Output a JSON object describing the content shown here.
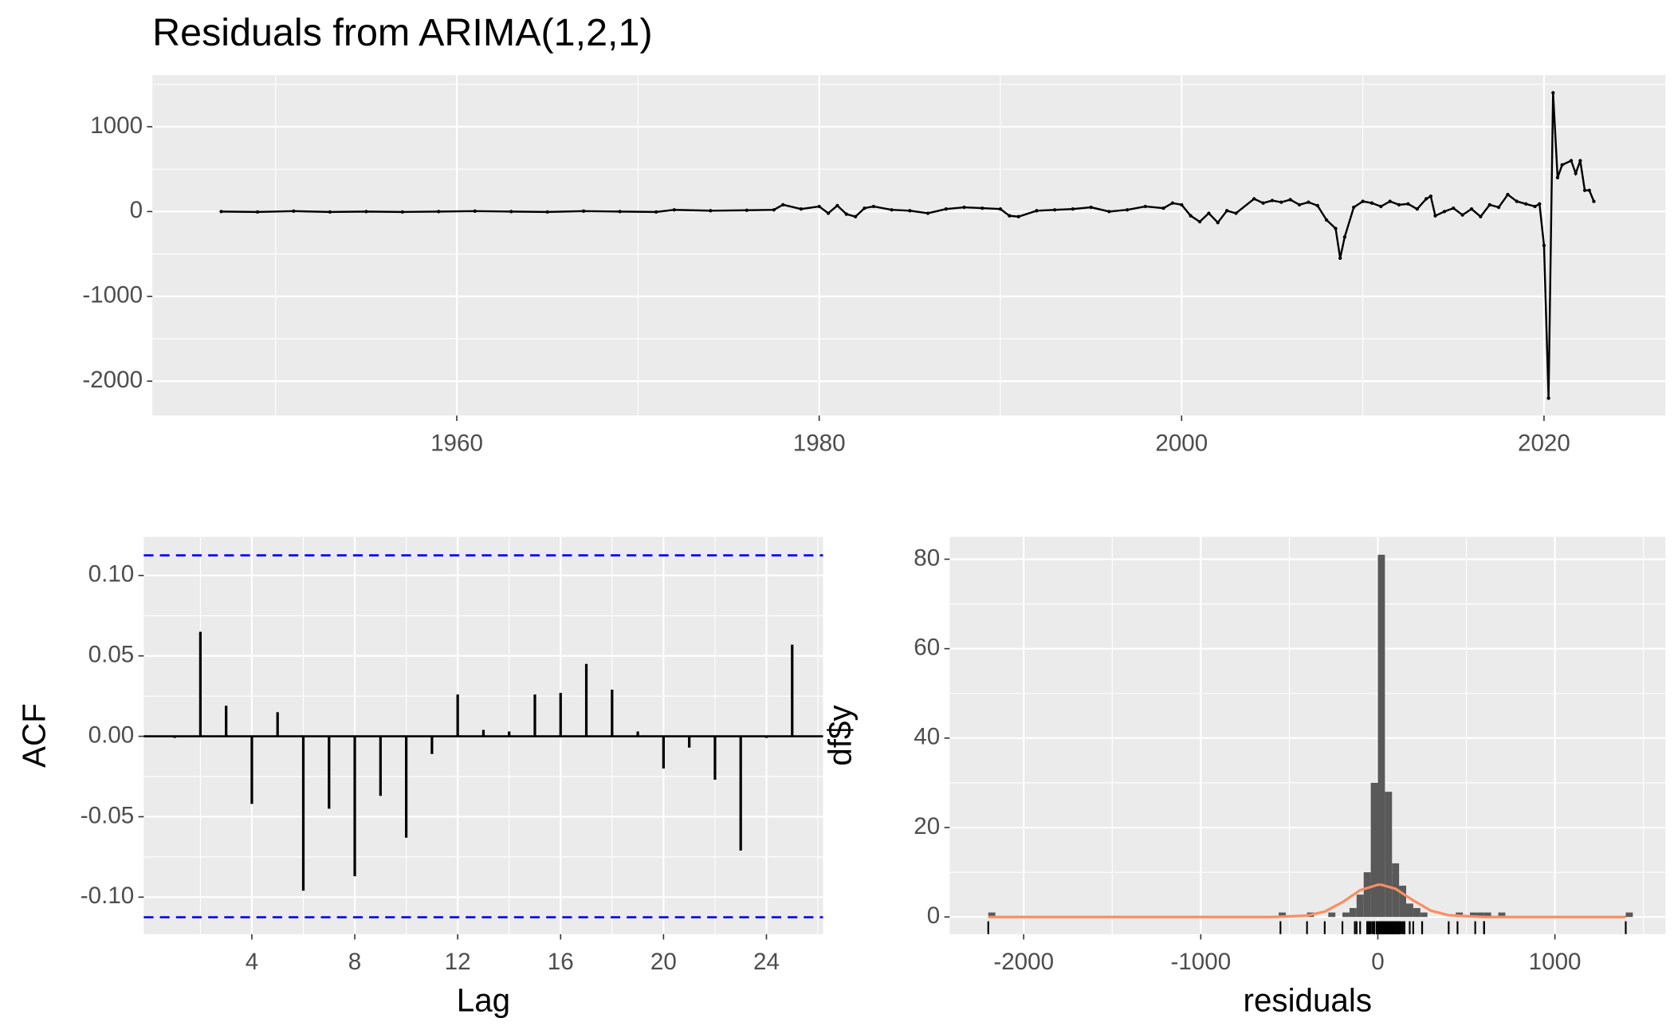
{
  "chart_data": [
    {
      "type": "line",
      "title": "Residuals from ARIMA(1,2,1)",
      "color": "#000000",
      "grid": true,
      "x": [
        1947,
        1949,
        1951,
        1953,
        1955,
        1957,
        1959,
        1961,
        1963,
        1965,
        1967,
        1969,
        1971,
        1972,
        1974,
        1976,
        1977.5,
        1978,
        1979,
        1980,
        1980.5,
        1981,
        1981.5,
        1982,
        1982.5,
        1983,
        1984,
        1985,
        1986,
        1987,
        1988,
        1989,
        1990,
        1990.5,
        1991,
        1992,
        1993,
        1994,
        1995,
        1996,
        1997,
        1998,
        1999,
        1999.5,
        2000,
        2000.5,
        2001,
        2001.5,
        2002,
        2002.5,
        2003,
        2004,
        2004.5,
        2005,
        2005.5,
        2006,
        2006.5,
        2007,
        2007.5,
        2008,
        2008.5,
        2008.75,
        2009,
        2009.5,
        2010,
        2010.5,
        2011,
        2011.5,
        2012,
        2012.5,
        2013,
        2013.5,
        2013.75,
        2014,
        2014.5,
        2015,
        2015.5,
        2016,
        2016.5,
        2017,
        2017.5,
        2018,
        2018.5,
        2019,
        2019.5,
        2019.75,
        2020,
        2020.25,
        2020.5,
        2020.75,
        2021,
        2021.5,
        2021.75,
        2022,
        2022.25,
        2022.5,
        2022.75
      ],
      "values": [
        0,
        -5,
        5,
        -5,
        0,
        -5,
        0,
        5,
        0,
        -5,
        5,
        0,
        -5,
        20,
        10,
        15,
        20,
        80,
        30,
        60,
        -20,
        70,
        -30,
        -60,
        40,
        60,
        20,
        10,
        -20,
        30,
        50,
        40,
        30,
        -50,
        -60,
        10,
        20,
        30,
        50,
        0,
        20,
        60,
        40,
        100,
        80,
        -50,
        -120,
        -20,
        -130,
        10,
        -20,
        150,
        100,
        130,
        110,
        140,
        80,
        110,
        70,
        -100,
        -200,
        -550,
        -300,
        50,
        120,
        100,
        60,
        120,
        80,
        90,
        30,
        150,
        180,
        -50,
        0,
        40,
        -40,
        30,
        -60,
        80,
        50,
        200,
        120,
        90,
        60,
        90,
        -400,
        -2200,
        1400,
        400,
        550,
        600,
        450,
        600,
        250,
        250,
        120
      ],
      "xlim": [
        1943.2,
        2026.7
      ],
      "xticks": [
        1960,
        1980,
        2000,
        2020
      ],
      "ylim": [
        -2405,
        1608
      ],
      "yticks": [
        -2000,
        -1000,
        0,
        1000
      ]
    },
    {
      "type": "acf",
      "x_label": "Lag",
      "y_label": "ACF",
      "color": "#000000",
      "grid": true,
      "x": [
        1,
        2,
        3,
        4,
        5,
        6,
        7,
        8,
        9,
        10,
        11,
        12,
        13,
        14,
        15,
        16,
        17,
        18,
        19,
        20,
        21,
        22,
        23,
        24,
        25
      ],
      "values": [
        -0.001,
        0.065,
        0.019,
        -0.042,
        0.015,
        -0.096,
        -0.045,
        -0.087,
        -0.037,
        -0.063,
        -0.011,
        0.026,
        0.004,
        0.003,
        0.026,
        0.027,
        0.045,
        0.029,
        0.003,
        -0.02,
        -0.007,
        -0.027,
        -0.071,
        -0.001,
        0.057
      ],
      "confidence_lines": [
        0.1125,
        -0.1125
      ],
      "confidence_color": "#0000ff",
      "xlim": [
        -0.2,
        26.2
      ],
      "xticks": [
        4,
        8,
        12,
        16,
        20,
        24
      ],
      "ylim": [
        -0.123,
        0.124
      ],
      "yticks": [
        {
          "value": -0.1,
          "label": "-0.10"
        },
        {
          "value": -0.05,
          "label": "-0.05"
        },
        {
          "value": 0,
          "label": "0.00"
        },
        {
          "value": 0.05,
          "label": "0.05"
        },
        {
          "value": 0.1,
          "label": "0.10"
        }
      ]
    },
    {
      "type": "histogram",
      "x_label": "residuals",
      "y_label": "df$y",
      "color": "#595959",
      "grid": true,
      "bins": [
        -2200,
        -2160,
        -2120,
        -2080,
        -2040,
        -2000,
        -1960,
        -1920,
        -1880,
        -1840,
        -1800,
        -1760,
        -1720,
        -1680,
        -1640,
        -1600,
        -1560,
        -1520,
        -1480,
        -1440,
        -1400,
        -1360,
        -1320,
        -1280,
        -1240,
        -1200,
        -1160,
        -1120,
        -1080,
        -1040,
        -1000,
        -960,
        -920,
        -880,
        -840,
        -800,
        -760,
        -720,
        -680,
        -640,
        -600,
        -560,
        -520,
        -480,
        -440,
        -400,
        -360,
        -320,
        -280,
        -240,
        -200,
        -160,
        -120,
        -80,
        -40,
        0,
        40,
        80,
        120,
        160,
        200,
        240,
        280,
        320,
        360,
        400,
        440,
        480,
        520,
        560,
        600,
        640,
        680,
        720,
        760,
        800,
        840,
        880,
        920,
        960,
        1000,
        1040,
        1080,
        1120,
        1160,
        1200,
        1240,
        1280,
        1320,
        1360,
        1400,
        1440
      ],
      "counts": [
        1,
        0,
        0,
        0,
        0,
        0,
        0,
        0,
        0,
        0,
        0,
        0,
        0,
        0,
        0,
        0,
        0,
        0,
        0,
        0,
        0,
        0,
        0,
        0,
        0,
        0,
        0,
        0,
        0,
        0,
        0,
        0,
        0,
        0,
        0,
        0,
        0,
        0,
        0,
        0,
        0,
        1,
        0,
        0,
        0,
        1,
        0,
        0,
        1,
        0,
        1,
        2,
        5,
        10,
        30,
        81,
        28,
        12,
        7,
        3,
        2,
        1,
        0,
        0,
        0,
        0,
        1,
        0,
        1,
        1,
        1,
        0,
        1,
        0,
        0,
        0,
        0,
        0,
        0,
        0,
        0,
        0,
        0,
        0,
        0,
        0,
        0,
        0,
        0,
        0,
        1
      ],
      "density": {
        "color": "#fc8d62",
        "x": [
          -2200,
          -600,
          -400,
          -300,
          -200,
          -100,
          0,
          20,
          100,
          200,
          300,
          400,
          600,
          1400
        ],
        "y": [
          0,
          0,
          0.3,
          1.2,
          3.3,
          6.0,
          7.2,
          7.2,
          6.3,
          3.7,
          1.4,
          0.4,
          0,
          0
        ]
      },
      "xlim": [
        -2418,
        1624
      ],
      "xticks": [
        -2000,
        -1000,
        0,
        1000
      ],
      "ylim": [
        -3.84,
        85.0
      ],
      "yticks": [
        0,
        20,
        40,
        60,
        80
      ]
    }
  ]
}
